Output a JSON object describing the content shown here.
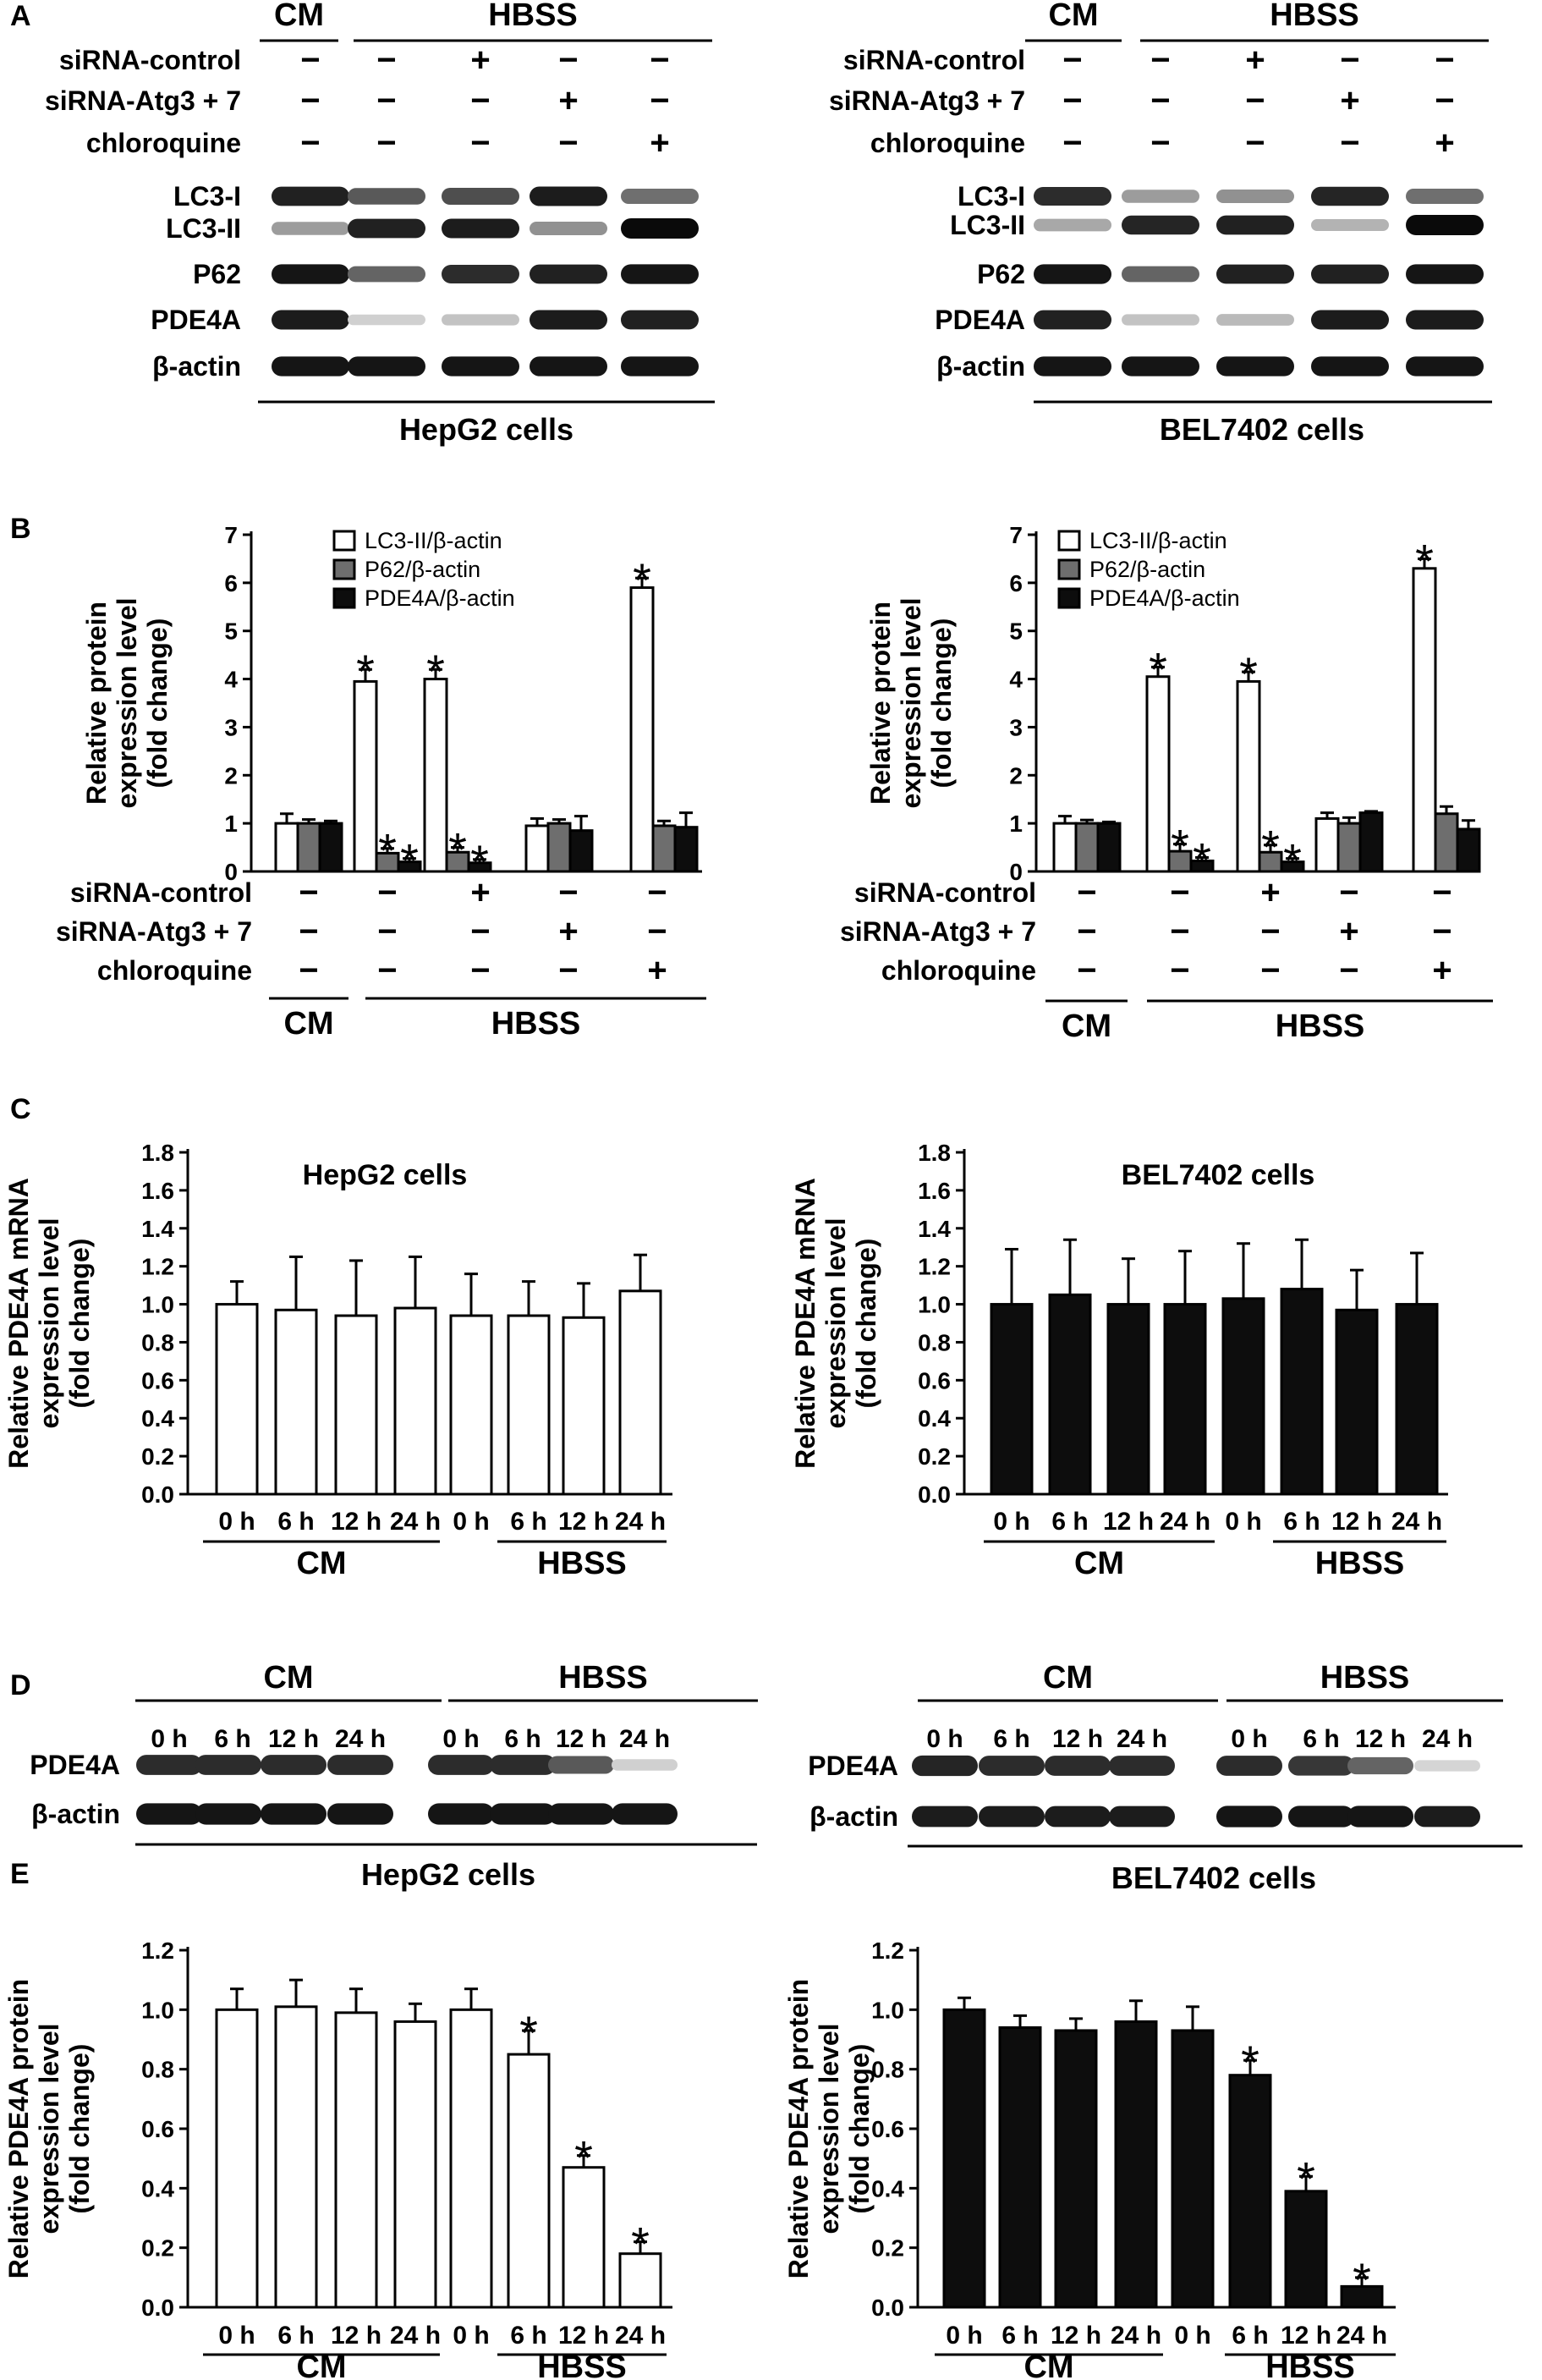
{
  "panel_labels": {
    "a": "A",
    "b": "B",
    "c": "C",
    "d": "D",
    "e": "E"
  },
  "group_labels": {
    "cm": "CM",
    "hbss": "HBSS"
  },
  "treatment_rows": [
    "siRNA-control",
    "siRNA-Atg3 + 7",
    "chloroquine"
  ],
  "treatment_signs": [
    [
      "−",
      "−",
      "+",
      "−",
      "−"
    ],
    [
      "−",
      "−",
      "−",
      "+",
      "−"
    ],
    [
      "−",
      "−",
      "−",
      "−",
      "+"
    ]
  ],
  "blot_rows_a": [
    "LC3-I",
    "LC3-II",
    "P62",
    "PDE4A",
    "β-actin"
  ],
  "blot_rows_d": [
    "PDE4A",
    "β-actin"
  ],
  "cell_lines": [
    "HepG2 cells",
    "BEL7402 cells"
  ],
  "time_labels": [
    "0 h",
    "6 h",
    "12 h",
    "24 h",
    "0 h",
    "6 h",
    "12 h",
    "24 h"
  ],
  "star": "*",
  "colors": {
    "white_bar": "#ffffff",
    "gray_bar": "#6e6e6e",
    "black_bar": "#0d0d0d"
  },
  "chart_data": [
    {
      "id": "B-left",
      "type": "bar",
      "ylabel": [
        "Relative protein",
        "expression level",
        "(fold change)"
      ],
      "ylim": [
        0,
        7
      ],
      "yticks": [
        0,
        1,
        2,
        3,
        4,
        5,
        6,
        7
      ],
      "legend_position": "top-left",
      "series": [
        {
          "name": "LC3-II/β-actin",
          "color": "#ffffff",
          "values": [
            1.0,
            3.95,
            4.0,
            0.95,
            5.9
          ],
          "errors": [
            0.2,
            0.25,
            0.2,
            0.15,
            0.2
          ],
          "stars": [
            false,
            true,
            true,
            false,
            true
          ]
        },
        {
          "name": "P62/β-actin",
          "color": "#6e6e6e",
          "values": [
            1.0,
            0.38,
            0.4,
            1.0,
            0.95
          ],
          "errors": [
            0.08,
            0.1,
            0.1,
            0.08,
            0.1
          ],
          "stars": [
            false,
            true,
            true,
            false,
            false
          ]
        },
        {
          "name": "PDE4A/β-actin",
          "color": "#0d0d0d",
          "values": [
            1.0,
            0.2,
            0.18,
            0.85,
            0.92
          ],
          "errors": [
            0.05,
            0.07,
            0.07,
            0.3,
            0.3
          ],
          "stars": [
            false,
            true,
            true,
            false,
            false
          ]
        }
      ]
    },
    {
      "id": "B-right",
      "type": "bar",
      "ylabel": [
        "Relative protein",
        "expression level",
        "(fold change)"
      ],
      "ylim": [
        0,
        7
      ],
      "yticks": [
        0,
        1,
        2,
        3,
        4,
        5,
        6,
        7
      ],
      "legend_position": "top-left",
      "series": [
        {
          "name": "LC3-II/β-actin",
          "color": "#ffffff",
          "values": [
            1.0,
            4.05,
            3.95,
            1.1,
            6.3
          ],
          "errors": [
            0.15,
            0.2,
            0.2,
            0.12,
            0.2
          ],
          "stars": [
            false,
            true,
            true,
            false,
            true
          ]
        },
        {
          "name": "P62/β-actin",
          "color": "#6e6e6e",
          "values": [
            1.0,
            0.42,
            0.4,
            1.0,
            1.2
          ],
          "errors": [
            0.07,
            0.15,
            0.15,
            0.12,
            0.15
          ],
          "stars": [
            false,
            true,
            true,
            false,
            false
          ]
        },
        {
          "name": "PDE4A/β-actin",
          "color": "#0d0d0d",
          "values": [
            1.0,
            0.22,
            0.2,
            1.22,
            0.88
          ],
          "errors": [
            0.03,
            0.07,
            0.07,
            0.03,
            0.18
          ],
          "stars": [
            false,
            true,
            true,
            false,
            false
          ]
        }
      ]
    },
    {
      "id": "C-left",
      "type": "bar",
      "title": "HepG2 cells",
      "ylabel": [
        "Relative PDE4A mRNA",
        "expression level",
        "(fold change)"
      ],
      "ylim": [
        0,
        1.8
      ],
      "yticks": [
        "0.0",
        "0.2",
        "0.4",
        "0.6",
        "0.8",
        "1.0",
        "1.2",
        "1.4",
        "1.6",
        "1.8"
      ],
      "series": [
        {
          "color": "#ffffff",
          "values": [
            1.0,
            0.97,
            0.94,
            0.98,
            0.94,
            0.94,
            0.93,
            1.07
          ],
          "errors": [
            0.12,
            0.28,
            0.29,
            0.27,
            0.22,
            0.18,
            0.18,
            0.19
          ],
          "stars": [
            false,
            false,
            false,
            false,
            false,
            false,
            false,
            false
          ]
        }
      ]
    },
    {
      "id": "C-right",
      "type": "bar",
      "title": "BEL7402 cells",
      "ylabel": [
        "Relative PDE4A mRNA",
        "expression level",
        "(fold change)"
      ],
      "ylim": [
        0,
        1.8
      ],
      "yticks": [
        "0.0",
        "0.2",
        "0.4",
        "0.6",
        "0.8",
        "1.0",
        "1.2",
        "1.4",
        "1.6",
        "1.8"
      ],
      "series": [
        {
          "color": "#0d0d0d",
          "values": [
            1.0,
            1.05,
            1.0,
            1.0,
            1.03,
            1.08,
            0.97,
            1.0
          ],
          "errors": [
            0.29,
            0.29,
            0.24,
            0.28,
            0.29,
            0.26,
            0.21,
            0.27
          ],
          "stars": [
            false,
            false,
            false,
            false,
            false,
            false,
            false,
            false
          ]
        }
      ]
    },
    {
      "id": "E-left",
      "type": "bar",
      "ylabel": [
        "Relative PDE4A protein",
        "expression level",
        "(fold change)"
      ],
      "ylim": [
        0,
        1.2
      ],
      "yticks": [
        "0.0",
        "0.2",
        "0.4",
        "0.6",
        "0.8",
        "1.0",
        "1.2"
      ],
      "series": [
        {
          "color": "#ffffff",
          "values": [
            1.0,
            1.01,
            0.99,
            0.96,
            1.0,
            0.85,
            0.47,
            0.18
          ],
          "errors": [
            0.07,
            0.09,
            0.08,
            0.06,
            0.07,
            0.08,
            0.04,
            0.04
          ],
          "stars": [
            false,
            false,
            false,
            false,
            false,
            true,
            true,
            true
          ]
        }
      ]
    },
    {
      "id": "E-right",
      "type": "bar",
      "ylabel": [
        "Relative PDE4A protein",
        "expression level",
        "(fold change)"
      ],
      "ylim": [
        0,
        1.2
      ],
      "yticks": [
        "0.0",
        "0.2",
        "0.4",
        "0.6",
        "0.8",
        "1.0",
        "1.2"
      ],
      "series": [
        {
          "color": "#0d0d0d",
          "values": [
            1.0,
            0.94,
            0.93,
            0.96,
            0.93,
            0.78,
            0.39,
            0.07
          ],
          "errors": [
            0.04,
            0.04,
            0.04,
            0.07,
            0.08,
            0.05,
            0.05,
            0.03
          ],
          "stars": [
            false,
            false,
            false,
            false,
            false,
            true,
            true,
            true
          ]
        }
      ]
    }
  ],
  "blots": {
    "A-left": [
      {
        "row": "LC3-I",
        "intensity": [
          0.9,
          0.65,
          0.7,
          0.92,
          0.55
        ]
      },
      {
        "row": "LC3-II",
        "intensity": [
          0.35,
          0.9,
          0.92,
          0.4,
          1.0
        ]
      },
      {
        "row": "P62",
        "intensity": [
          0.95,
          0.6,
          0.85,
          0.9,
          0.95
        ]
      },
      {
        "row": "PDE4A",
        "intensity": [
          0.92,
          0.12,
          0.18,
          0.92,
          0.9
        ]
      },
      {
        "row": "β-actin",
        "intensity": [
          0.95,
          0.95,
          0.95,
          0.95,
          0.95
        ]
      }
    ],
    "A-right": [
      {
        "row": "LC3-I",
        "intensity": [
          0.85,
          0.35,
          0.4,
          0.88,
          0.55
        ]
      },
      {
        "row": "LC3-II",
        "intensity": [
          0.3,
          0.88,
          0.9,
          0.25,
          1.0
        ]
      },
      {
        "row": "P62",
        "intensity": [
          0.95,
          0.6,
          0.9,
          0.9,
          0.95
        ]
      },
      {
        "row": "PDE4A",
        "intensity": [
          0.9,
          0.18,
          0.22,
          0.92,
          0.92
        ]
      },
      {
        "row": "β-actin",
        "intensity": [
          0.95,
          0.95,
          0.95,
          0.95,
          0.95
        ]
      }
    ],
    "D-left": [
      {
        "row": "PDE4A",
        "intensity": [
          0.85,
          0.85,
          0.85,
          0.85,
          0.85,
          0.85,
          0.65,
          0.12
        ]
      },
      {
        "row": "β-actin",
        "intensity": [
          0.95,
          0.95,
          0.95,
          0.95,
          0.95,
          0.95,
          0.95,
          0.95
        ]
      }
    ],
    "D-right": [
      {
        "row": "PDE4A",
        "intensity": [
          0.88,
          0.85,
          0.85,
          0.85,
          0.85,
          0.8,
          0.6,
          0.1
        ]
      },
      {
        "row": "β-actin",
        "intensity": [
          0.92,
          0.92,
          0.92,
          0.92,
          0.95,
          0.95,
          0.95,
          0.92
        ]
      }
    ]
  }
}
